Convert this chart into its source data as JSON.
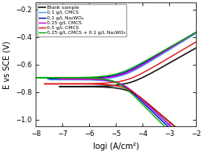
{
  "title": "",
  "xlabel": "logi (A/cm²)",
  "ylabel": "E vs SCE (V)",
  "xlim": [
    -8,
    -2
  ],
  "ylim": [
    -1.05,
    -0.15
  ],
  "xticks": [
    -8,
    -7,
    -6,
    -5,
    -4,
    -3,
    -2
  ],
  "yticks": [
    -1.0,
    -0.8,
    -0.6,
    -0.4,
    -0.2
  ],
  "legend_entries": [
    "Blank sample",
    "0.1 g/L CMCS",
    "0.1 g/L Na₂WO₄",
    "0.25 g/L CMCS",
    "0.5 g/L CMCS",
    "0.25 g/L CMCS + 0.1 g/L Na₂WO₄"
  ],
  "colors": [
    "#1a1a1a",
    "#4499ff",
    "#0000cc",
    "#cc00cc",
    "#dd1111",
    "#00aa00"
  ],
  "background": "#ffffff",
  "figsize": [
    2.52,
    1.89
  ],
  "dpi": 100,
  "curve_params": [
    {
      "ecorr": -0.76,
      "icorr": 2.8e-05,
      "ba": 0.048,
      "bc": 0.072,
      "lw": 1.2
    },
    {
      "ecorr": -0.71,
      "icorr": 1.5e-05,
      "ba": 0.052,
      "bc": 0.08,
      "lw": 1.0
    },
    {
      "ecorr": -0.7,
      "icorr": 1.2e-05,
      "ba": 0.05,
      "bc": 0.082,
      "lw": 1.0
    },
    {
      "ecorr": -0.705,
      "icorr": 1.4e-05,
      "ba": 0.052,
      "bc": 0.078,
      "lw": 1.0
    },
    {
      "ecorr": -0.74,
      "icorr": 2.2e-05,
      "ba": 0.05,
      "bc": 0.073,
      "lw": 1.0
    },
    {
      "ecorr": -0.695,
      "icorr": 1e-05,
      "ba": 0.048,
      "bc": 0.085,
      "lw": 1.0
    }
  ]
}
